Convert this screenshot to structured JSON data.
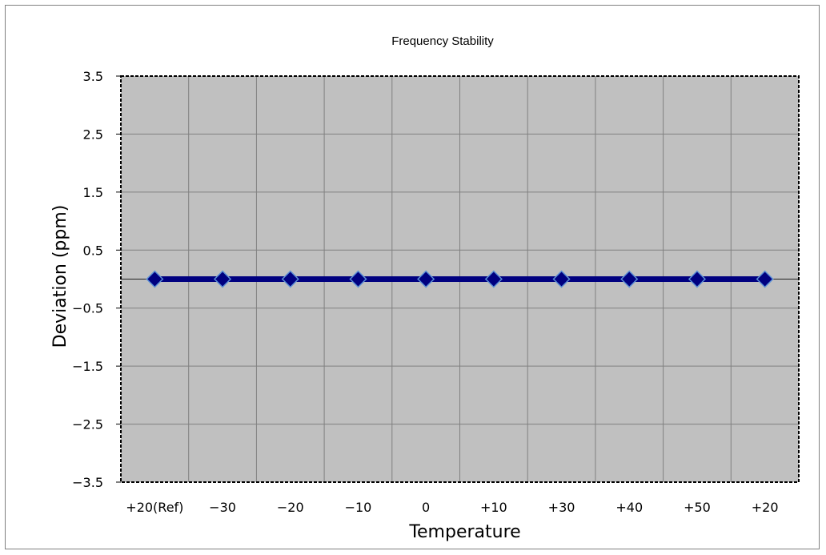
{
  "chart_data": {
    "type": "line",
    "title": "Frequency Stability",
    "xlabel": "Temperature",
    "ylabel": "Deviation (ppm)",
    "categories": [
      "+20(Ref)",
      "−30",
      "−20",
      "−10",
      "0",
      "+10",
      "+30",
      "+40",
      "+50",
      "+20"
    ],
    "series": [
      {
        "values": [
          0,
          0,
          0,
          0,
          0,
          0,
          0,
          0,
          0,
          0
        ]
      }
    ],
    "ylim": [
      -3.5,
      3.5
    ],
    "y_ticks": [
      3.5,
      2.5,
      1.5,
      0.5,
      -0.5,
      -1.5,
      -2.5,
      -3.5
    ],
    "y_tick_labels": [
      "3.5",
      "2.5",
      "1.5",
      "0.5",
      "−0.5",
      "−1.5",
      "−2.5",
      "−3.5"
    ],
    "grid": true,
    "legend": "none",
    "colors": {
      "plot_background": "#c0c0c0",
      "grid": "#808080",
      "line": "#000080",
      "marker_fill": "#000080",
      "marker_edge": "#5b8fd6"
    }
  }
}
